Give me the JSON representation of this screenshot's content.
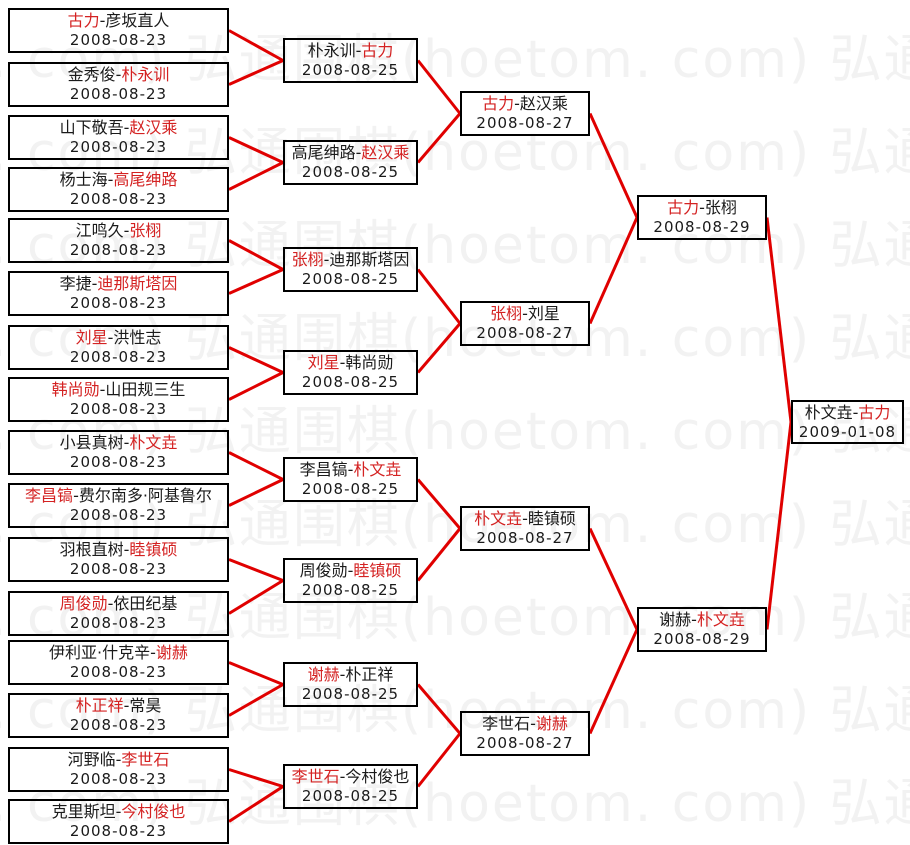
{
  "watermark": {
    "text": "弘通围棋(hoetom. com)"
  },
  "colors": {
    "winner_text": "#d42222",
    "loser_text": "#1a1a1a",
    "connector": "#e00000",
    "box_border": "#000000",
    "watermark_text": "#f2f2f2",
    "background": "#ffffff"
  },
  "bracket": {
    "separator": "-",
    "rounds": [
      {
        "label": "round-of-32",
        "date": "2008-08-23",
        "matches": [
          {
            "p1": "古力",
            "p2": "彦坂直人",
            "winner": 1,
            "date": "2008-08-23"
          },
          {
            "p1": "金秀俊",
            "p2": "朴永训",
            "winner": 2,
            "date": "2008-08-23"
          },
          {
            "p1": "山下敬吾",
            "p2": "赵汉乘",
            "winner": 2,
            "date": "2008-08-23"
          },
          {
            "p1": "杨士海",
            "p2": "高尾绅路",
            "winner": 2,
            "date": "2008-08-23"
          },
          {
            "p1": "江鸣久",
            "p2": "张栩",
            "winner": 2,
            "date": "2008-08-23"
          },
          {
            "p1": "李捷",
            "p2": "迪那斯塔因",
            "winner": 2,
            "date": "2008-08-23"
          },
          {
            "p1": "刘星",
            "p2": "洪性志",
            "winner": 1,
            "date": "2008-08-23"
          },
          {
            "p1": "韩尚勋",
            "p2": "山田规三生",
            "winner": 1,
            "date": "2008-08-23"
          },
          {
            "p1": "小县真树",
            "p2": "朴文垚",
            "winner": 2,
            "date": "2008-08-23"
          },
          {
            "p1": "李昌镐",
            "p2": "费尔南多·阿基鲁尔",
            "winner": 1,
            "date": "2008-08-23"
          },
          {
            "p1": "羽根直树",
            "p2": "睦镇硕",
            "winner": 2,
            "date": "2008-08-23"
          },
          {
            "p1": "周俊勋",
            "p2": "依田纪基",
            "winner": 1,
            "date": "2008-08-23"
          },
          {
            "p1": "伊利亚·什克辛",
            "p2": "谢赫",
            "winner": 2,
            "date": "2008-08-23"
          },
          {
            "p1": "朴正祥",
            "p2": "常昊",
            "winner": 1,
            "date": "2008-08-23"
          },
          {
            "p1": "河野临",
            "p2": "李世石",
            "winner": 2,
            "date": "2008-08-23"
          },
          {
            "p1": "克里斯坦",
            "p2": "今村俊也",
            "winner": 2,
            "date": "2008-08-23"
          }
        ]
      },
      {
        "label": "round-of-16",
        "date": "2008-08-25",
        "matches": [
          {
            "p1": "朴永训",
            "p2": "古力",
            "winner": 2,
            "date": "2008-08-25"
          },
          {
            "p1": "高尾绅路",
            "p2": "赵汉乘",
            "winner": 2,
            "date": "2008-08-25"
          },
          {
            "p1": "张栩",
            "p2": "迪那斯塔因",
            "winner": 1,
            "date": "2008-08-25"
          },
          {
            "p1": "刘星",
            "p2": "韩尚勋",
            "winner": 1,
            "date": "2008-08-25"
          },
          {
            "p1": "李昌镐",
            "p2": "朴文垚",
            "winner": 2,
            "date": "2008-08-25"
          },
          {
            "p1": "周俊勋",
            "p2": "睦镇硕",
            "winner": 2,
            "date": "2008-08-25"
          },
          {
            "p1": "谢赫",
            "p2": "朴正祥",
            "winner": 1,
            "date": "2008-08-25"
          },
          {
            "p1": "李世石",
            "p2": "今村俊也",
            "winner": 1,
            "date": "2008-08-25"
          }
        ]
      },
      {
        "label": "quarterfinal",
        "date": "2008-08-27",
        "matches": [
          {
            "p1": "古力",
            "p2": "赵汉乘",
            "winner": 1,
            "date": "2008-08-27"
          },
          {
            "p1": "张栩",
            "p2": "刘星",
            "winner": 1,
            "date": "2008-08-27"
          },
          {
            "p1": "朴文垚",
            "p2": "睦镇硕",
            "winner": 1,
            "date": "2008-08-27"
          },
          {
            "p1": "李世石",
            "p2": "谢赫",
            "winner": 2,
            "date": "2008-08-27"
          }
        ]
      },
      {
        "label": "semifinal",
        "date": "2008-08-29",
        "matches": [
          {
            "p1": "古力",
            "p2": "张栩",
            "winner": 1,
            "date": "2008-08-29"
          },
          {
            "p1": "谢赫",
            "p2": "朴文垚",
            "winner": 2,
            "date": "2008-08-29"
          }
        ]
      },
      {
        "label": "final",
        "date": "2009-01-08",
        "matches": [
          {
            "p1": "朴文垚",
            "p2": "古力",
            "winner": 2,
            "date": "2009-01-08"
          }
        ]
      }
    ]
  }
}
